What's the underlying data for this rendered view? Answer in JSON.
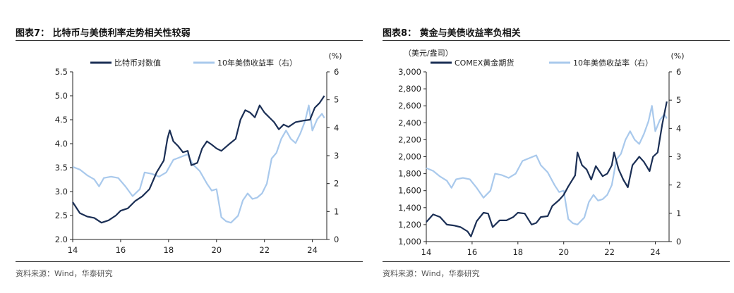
{
  "colors": {
    "dark": "#1b2f55",
    "light": "#a9c9ec"
  },
  "panels": [
    {
      "title": "图表7：  比特币与美债利率走势相关性较弱",
      "source": "资料来源：Wind，华泰研究"
    },
    {
      "title": "图表8：  黄金与美债收益率负相关",
      "source": "资料来源：Wind，华泰研究"
    }
  ],
  "chart_data": [
    {
      "type": "line",
      "left_unit": "",
      "right_unit": "(%)",
      "x_ticks": [
        "14",
        "16",
        "18",
        "20",
        "22",
        "24"
      ],
      "xlim": [
        2014,
        2024.6
      ],
      "ylim_left": [
        2.0,
        5.5
      ],
      "left_ticks": [
        "2.0",
        "2.5",
        "3.0",
        "3.5",
        "4.0",
        "4.5",
        "5.0",
        "5.5"
      ],
      "ylim_right": [
        0,
        6
      ],
      "right_ticks": [
        "0",
        "1",
        "2",
        "3",
        "4",
        "5",
        "6"
      ],
      "series": [
        {
          "name": "比特币对数值",
          "axis": "left",
          "color_key": "dark",
          "points": [
            [
              2014.0,
              2.78
            ],
            [
              2014.3,
              2.55
            ],
            [
              2014.6,
              2.48
            ],
            [
              2014.9,
              2.45
            ],
            [
              2015.2,
              2.35
            ],
            [
              2015.5,
              2.4
            ],
            [
              2015.8,
              2.5
            ],
            [
              2016.0,
              2.6
            ],
            [
              2016.3,
              2.65
            ],
            [
              2016.6,
              2.8
            ],
            [
              2016.9,
              2.9
            ],
            [
              2017.2,
              3.05
            ],
            [
              2017.5,
              3.4
            ],
            [
              2017.8,
              3.65
            ],
            [
              2017.95,
              4.1
            ],
            [
              2018.05,
              4.28
            ],
            [
              2018.2,
              4.05
            ],
            [
              2018.4,
              3.95
            ],
            [
              2018.6,
              3.82
            ],
            [
              2018.8,
              3.85
            ],
            [
              2018.95,
              3.55
            ],
            [
              2019.2,
              3.6
            ],
            [
              2019.4,
              3.9
            ],
            [
              2019.6,
              4.05
            ],
            [
              2019.8,
              3.98
            ],
            [
              2020.0,
              3.9
            ],
            [
              2020.2,
              3.85
            ],
            [
              2020.5,
              3.98
            ],
            [
              2020.8,
              4.1
            ],
            [
              2021.0,
              4.5
            ],
            [
              2021.2,
              4.7
            ],
            [
              2021.4,
              4.65
            ],
            [
              2021.6,
              4.55
            ],
            [
              2021.8,
              4.8
            ],
            [
              2022.0,
              4.65
            ],
            [
              2022.2,
              4.55
            ],
            [
              2022.4,
              4.45
            ],
            [
              2022.6,
              4.3
            ],
            [
              2022.8,
              4.4
            ],
            [
              2023.0,
              4.35
            ],
            [
              2023.3,
              4.45
            ],
            [
              2023.6,
              4.48
            ],
            [
              2023.9,
              4.5
            ],
            [
              2024.1,
              4.75
            ],
            [
              2024.3,
              4.85
            ],
            [
              2024.5,
              5.0
            ]
          ]
        },
        {
          "name": "10年美债收益率（右）",
          "axis": "right",
          "color_key": "light",
          "points": [
            [
              2014.0,
              2.6
            ],
            [
              2014.3,
              2.5
            ],
            [
              2014.6,
              2.3
            ],
            [
              2014.9,
              2.15
            ],
            [
              2015.1,
              1.9
            ],
            [
              2015.3,
              2.2
            ],
            [
              2015.6,
              2.25
            ],
            [
              2015.9,
              2.2
            ],
            [
              2016.2,
              1.9
            ],
            [
              2016.5,
              1.55
            ],
            [
              2016.8,
              1.8
            ],
            [
              2017.0,
              2.4
            ],
            [
              2017.3,
              2.35
            ],
            [
              2017.6,
              2.25
            ],
            [
              2017.9,
              2.4
            ],
            [
              2018.2,
              2.85
            ],
            [
              2018.5,
              2.95
            ],
            [
              2018.8,
              3.05
            ],
            [
              2019.0,
              2.7
            ],
            [
              2019.3,
              2.45
            ],
            [
              2019.6,
              2.0
            ],
            [
              2019.8,
              1.75
            ],
            [
              2020.0,
              1.8
            ],
            [
              2020.2,
              0.8
            ],
            [
              2020.4,
              0.65
            ],
            [
              2020.6,
              0.6
            ],
            [
              2020.9,
              0.85
            ],
            [
              2021.1,
              1.4
            ],
            [
              2021.3,
              1.65
            ],
            [
              2021.5,
              1.45
            ],
            [
              2021.7,
              1.5
            ],
            [
              2021.9,
              1.65
            ],
            [
              2022.1,
              2.0
            ],
            [
              2022.3,
              2.9
            ],
            [
              2022.5,
              3.1
            ],
            [
              2022.7,
              3.6
            ],
            [
              2022.9,
              3.9
            ],
            [
              2023.1,
              3.6
            ],
            [
              2023.3,
              3.45
            ],
            [
              2023.5,
              3.8
            ],
            [
              2023.7,
              4.25
            ],
            [
              2023.85,
              4.8
            ],
            [
              2024.0,
              3.9
            ],
            [
              2024.2,
              4.3
            ],
            [
              2024.4,
              4.5
            ],
            [
              2024.5,
              4.35
            ]
          ]
        }
      ]
    },
    {
      "type": "line",
      "left_unit": "（美元/盎司）",
      "right_unit": "(%)",
      "x_ticks": [
        "14",
        "16",
        "18",
        "20",
        "22",
        "24"
      ],
      "xlim": [
        2014,
        2024.6
      ],
      "ylim_left": [
        1000,
        3000
      ],
      "left_ticks": [
        "1,000",
        "1,200",
        "1,400",
        "1,600",
        "1,800",
        "2,000",
        "2,200",
        "2,400",
        "2,600",
        "2,800",
        "3,000"
      ],
      "ylim_right": [
        0,
        6
      ],
      "right_ticks": [
        "0",
        "1",
        "2",
        "3",
        "4",
        "5",
        "6"
      ],
      "series": [
        {
          "name": "COMEX黄金期货",
          "axis": "left",
          "color_key": "dark",
          "points": [
            [
              2014.0,
              1230
            ],
            [
              2014.3,
              1320
            ],
            [
              2014.6,
              1290
            ],
            [
              2014.9,
              1200
            ],
            [
              2015.2,
              1190
            ],
            [
              2015.5,
              1170
            ],
            [
              2015.8,
              1120
            ],
            [
              2015.95,
              1060
            ],
            [
              2016.2,
              1240
            ],
            [
              2016.5,
              1340
            ],
            [
              2016.7,
              1330
            ],
            [
              2016.9,
              1170
            ],
            [
              2017.2,
              1250
            ],
            [
              2017.5,
              1250
            ],
            [
              2017.8,
              1290
            ],
            [
              2018.0,
              1340
            ],
            [
              2018.3,
              1330
            ],
            [
              2018.6,
              1200
            ],
            [
              2018.8,
              1220
            ],
            [
              2019.0,
              1290
            ],
            [
              2019.3,
              1300
            ],
            [
              2019.5,
              1420
            ],
            [
              2019.8,
              1490
            ],
            [
              2020.0,
              1550
            ],
            [
              2020.2,
              1650
            ],
            [
              2020.5,
              1780
            ],
            [
              2020.6,
              2050
            ],
            [
              2020.8,
              1900
            ],
            [
              2021.0,
              1850
            ],
            [
              2021.2,
              1730
            ],
            [
              2021.4,
              1890
            ],
            [
              2021.7,
              1770
            ],
            [
              2021.9,
              1800
            ],
            [
              2022.1,
              1900
            ],
            [
              2022.2,
              2050
            ],
            [
              2022.4,
              1850
            ],
            [
              2022.6,
              1730
            ],
            [
              2022.8,
              1640
            ],
            [
              2023.0,
              1900
            ],
            [
              2023.3,
              2000
            ],
            [
              2023.5,
              1940
            ],
            [
              2023.75,
              1830
            ],
            [
              2023.9,
              2000
            ],
            [
              2024.1,
              2050
            ],
            [
              2024.3,
              2380
            ],
            [
              2024.5,
              2650
            ]
          ]
        },
        {
          "name": "10年美债收益率（右）",
          "axis": "right",
          "color_key": "light",
          "points": [
            [
              2014.0,
              2.6
            ],
            [
              2014.3,
              2.5
            ],
            [
              2014.6,
              2.3
            ],
            [
              2014.9,
              2.15
            ],
            [
              2015.1,
              1.9
            ],
            [
              2015.3,
              2.2
            ],
            [
              2015.6,
              2.25
            ],
            [
              2015.9,
              2.2
            ],
            [
              2016.2,
              1.9
            ],
            [
              2016.5,
              1.55
            ],
            [
              2016.8,
              1.8
            ],
            [
              2017.0,
              2.4
            ],
            [
              2017.3,
              2.35
            ],
            [
              2017.6,
              2.25
            ],
            [
              2017.9,
              2.4
            ],
            [
              2018.2,
              2.85
            ],
            [
              2018.5,
              2.95
            ],
            [
              2018.8,
              3.05
            ],
            [
              2019.0,
              2.7
            ],
            [
              2019.3,
              2.45
            ],
            [
              2019.6,
              2.0
            ],
            [
              2019.8,
              1.75
            ],
            [
              2020.0,
              1.8
            ],
            [
              2020.2,
              0.8
            ],
            [
              2020.4,
              0.65
            ],
            [
              2020.6,
              0.6
            ],
            [
              2020.9,
              0.85
            ],
            [
              2021.1,
              1.4
            ],
            [
              2021.3,
              1.65
            ],
            [
              2021.5,
              1.45
            ],
            [
              2021.7,
              1.5
            ],
            [
              2021.9,
              1.65
            ],
            [
              2022.1,
              2.0
            ],
            [
              2022.3,
              2.9
            ],
            [
              2022.5,
              3.1
            ],
            [
              2022.7,
              3.6
            ],
            [
              2022.9,
              3.9
            ],
            [
              2023.1,
              3.6
            ],
            [
              2023.3,
              3.45
            ],
            [
              2023.5,
              3.8
            ],
            [
              2023.7,
              4.25
            ],
            [
              2023.85,
              4.8
            ],
            [
              2024.0,
              3.9
            ],
            [
              2024.2,
              4.3
            ],
            [
              2024.4,
              4.5
            ],
            [
              2024.5,
              4.35
            ]
          ]
        }
      ]
    }
  ]
}
